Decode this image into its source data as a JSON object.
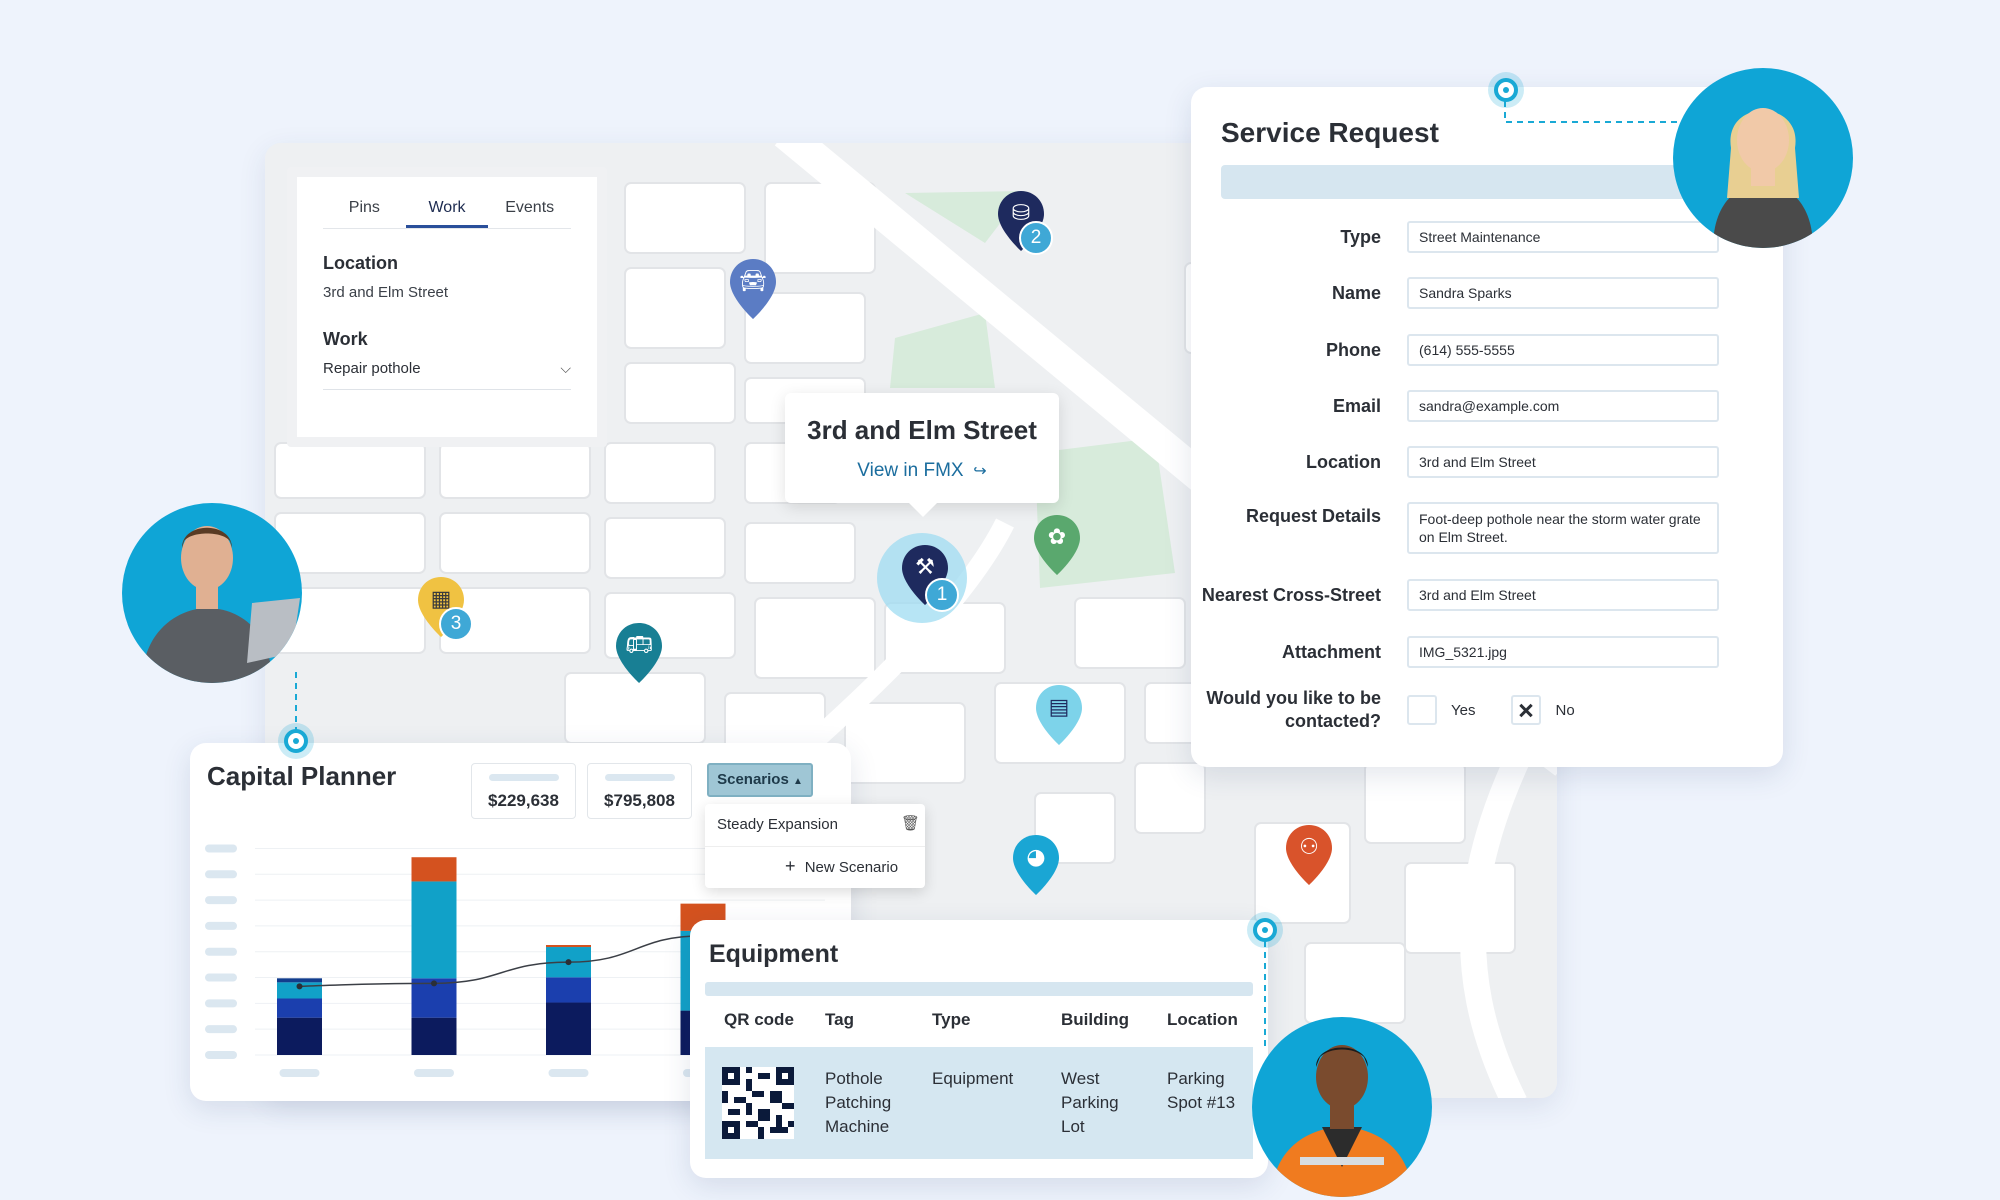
{
  "map": {
    "tabs": [
      "Pins",
      "Work",
      "Events"
    ],
    "active_tab": "Work",
    "location_label": "Location",
    "location_value": "3rd and Elm Street",
    "work_label": "Work",
    "work_value": "Repair pothole",
    "popup_title": "3rd and Elm Street",
    "popup_link": "View in FMX",
    "pins": [
      {
        "name": "facility",
        "badge": "2",
        "color": "#1e2a5e"
      },
      {
        "name": "vehicle",
        "badge": "",
        "color": "#5b7cc4"
      },
      {
        "name": "building",
        "badge": "3",
        "color": "#f0c242"
      },
      {
        "name": "bus",
        "badge": "",
        "color": "#187f94"
      },
      {
        "name": "road-work",
        "badge": "1",
        "color": "#1e2a5e"
      },
      {
        "name": "park",
        "badge": "",
        "color": "#5aa86e"
      },
      {
        "name": "library",
        "badge": "",
        "color": "#7dd3ea"
      },
      {
        "name": "sports",
        "badge": "",
        "color": "#1aa6d4"
      },
      {
        "name": "playground",
        "badge": "",
        "color": "#d9532b"
      }
    ]
  },
  "service_request": {
    "title": "Service Request",
    "fields": [
      {
        "label": "Type",
        "value": "Street Maintenance"
      },
      {
        "label": "Name",
        "value": "Sandra Sparks"
      },
      {
        "label": "Phone",
        "value": "(614) 555-5555"
      },
      {
        "label": "Email",
        "value": "sandra@example.com"
      },
      {
        "label": "Location",
        "value": "3rd and Elm Street"
      },
      {
        "label": "Request Details",
        "value": "Foot-deep pothole near the storm water grate on Elm Street."
      },
      {
        "label": "Nearest Cross-Street",
        "value": "3rd and Elm Street"
      },
      {
        "label": "Attachment",
        "value": "IMG_5321.jpg"
      }
    ],
    "contact_question": "Would you like to be contacted?",
    "yes_label": "Yes",
    "no_label": "No",
    "contact_selected": "No"
  },
  "capital_planner": {
    "title": "Capital Planner",
    "stat1": "$229,638",
    "stat2": "$795,808",
    "scenarios_button": "Scenarios",
    "scenario_items": [
      "Steady Expansion"
    ],
    "new_scenario": "New Scenario"
  },
  "chart_data": {
    "type": "bar",
    "stacked": true,
    "categories": [
      "",
      "",
      "",
      ""
    ],
    "series": [
      {
        "values": [
          37,
          37,
          52,
          44
        ],
        "color": "#0c1b5e"
      },
      {
        "values": [
          19,
          39,
          25,
          0
        ],
        "color": "#1b3fae"
      },
      {
        "values": [
          16,
          96,
          30,
          79
        ],
        "color": "#11a1c8"
      },
      {
        "values": [
          0,
          24,
          2,
          27
        ],
        "color": "#d4521f"
      },
      {
        "values": [
          4,
          0,
          0,
          0
        ],
        "color": "#123d8d"
      }
    ],
    "trend": [
      68,
      71,
      92,
      118
    ],
    "ylim": [
      0,
      220
    ],
    "grid": true
  },
  "equipment": {
    "title": "Equipment",
    "columns": [
      "QR code",
      "Tag",
      "Type",
      "Building",
      "Location"
    ],
    "row": {
      "tag": "Pothole Patching Machine",
      "type": "Equipment",
      "building": "West Parking Lot",
      "location": "Parking Spot #13"
    }
  },
  "colors": {
    "accent": "#19a9d5",
    "navy": "#1e2a5e",
    "panel_bar": "#d6e6f0"
  }
}
